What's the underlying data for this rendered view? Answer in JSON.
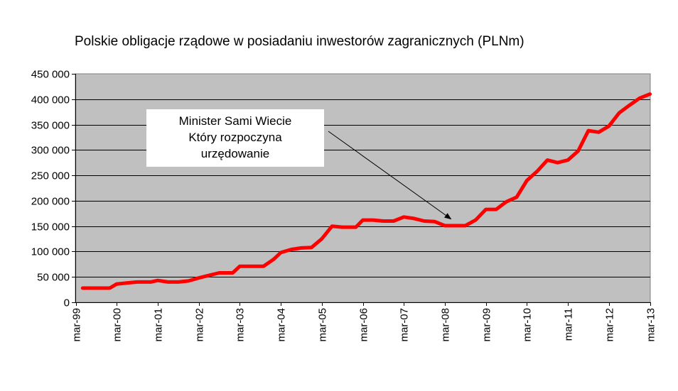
{
  "chart_data": {
    "type": "line",
    "title": "Polskie obligacje rządowe w posiadaniu inwestorów zagranicznych (PLNm)",
    "xlabel": "",
    "ylabel": "",
    "ylim": [
      0,
      450000
    ],
    "yticks": [
      "0",
      "50 000",
      "100 000",
      "150 000",
      "200 000",
      "250 000",
      "300 000",
      "350 000",
      "400 000",
      "450 000"
    ],
    "xticks": [
      "mar-99",
      "mar-00",
      "mar-01",
      "mar-02",
      "mar-03",
      "mar-04",
      "mar-05",
      "mar-06",
      "mar-07",
      "mar-08",
      "mar-09",
      "mar-10",
      "mar-11",
      "mar-12",
      "mar-13"
    ],
    "grid": true,
    "legend": "none",
    "plot_background": "#c0c0c0",
    "line_color": "#ff0000",
    "series": [
      {
        "x": [
          1999.17,
          1999.5,
          1999.83,
          2000.0,
          2000.25,
          2000.5,
          2000.83,
          2001.0,
          2001.25,
          2001.5,
          2001.75,
          2002.0,
          2002.25,
          2002.5,
          2002.83,
          2003.0,
          2003.25,
          2003.58,
          2003.83,
          2004.0,
          2004.25,
          2004.5,
          2004.75,
          2005.0,
          2005.25,
          2005.5,
          2005.83,
          2006.0,
          2006.25,
          2006.5,
          2006.75,
          2007.0,
          2007.25,
          2007.5,
          2007.75,
          2008.0,
          2008.25,
          2008.5,
          2008.75,
          2009.0,
          2009.25,
          2009.5,
          2009.75,
          2010.0,
          2010.25,
          2010.5,
          2010.75,
          2011.0,
          2011.25,
          2011.5,
          2011.75,
          2012.0,
          2012.25,
          2012.5,
          2012.75,
          2013.0
        ],
        "values": [
          28000,
          28000,
          28000,
          36000,
          38000,
          40000,
          40000,
          43000,
          40000,
          40000,
          42000,
          48000,
          53000,
          58000,
          58000,
          71000,
          71000,
          71000,
          85000,
          98000,
          104000,
          107000,
          108000,
          125000,
          150000,
          148000,
          148000,
          162000,
          162000,
          160000,
          160000,
          168000,
          165000,
          160000,
          159000,
          151000,
          151000,
          151000,
          162000,
          183000,
          183000,
          198000,
          207000,
          240000,
          258000,
          280000,
          275000,
          280000,
          298000,
          338000,
          335000,
          347000,
          373000,
          388000,
          402000,
          410000
        ]
      }
    ],
    "annotation": {
      "lines": [
        "Minister Sami Wiecie",
        "Który rozpoczyna",
        "urzędowanie"
      ],
      "target_x": 2008.15,
      "target_y": 164000
    }
  }
}
